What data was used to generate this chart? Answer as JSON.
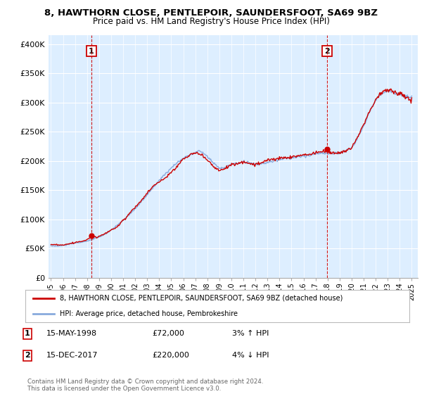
{
  "title_line1": "8, HAWTHORN CLOSE, PENTLEPOIR, SAUNDERSFOOT, SA69 9BZ",
  "title_line2": "Price paid vs. HM Land Registry's House Price Index (HPI)",
  "ylabel_ticks": [
    "£0",
    "£50K",
    "£100K",
    "£150K",
    "£200K",
    "£250K",
    "£300K",
    "£350K",
    "£400K"
  ],
  "ytick_values": [
    0,
    50000,
    100000,
    150000,
    200000,
    250000,
    300000,
    350000,
    400000
  ],
  "ylim": [
    0,
    415000
  ],
  "xlim_start": 1994.8,
  "xlim_end": 2025.5,
  "xtick_years": [
    1995,
    1996,
    1997,
    1998,
    1999,
    2000,
    2001,
    2002,
    2003,
    2004,
    2005,
    2006,
    2007,
    2008,
    2009,
    2010,
    2011,
    2012,
    2013,
    2014,
    2015,
    2016,
    2017,
    2018,
    2019,
    2020,
    2021,
    2022,
    2023,
    2024,
    2025
  ],
  "sale1_x": 1998.37,
  "sale1_y": 72000,
  "sale2_x": 2017.96,
  "sale2_y": 220000,
  "marker_color": "#cc0000",
  "line_color_red": "#cc0000",
  "line_color_blue": "#88aadd",
  "annotation_box_color": "#cc0000",
  "background_color": "#ffffff",
  "plot_bg_color": "#ddeeff",
  "grid_color": "#ffffff",
  "legend_label_red": "8, HAWTHORN CLOSE, PENTLEPOIR, SAUNDERSFOOT, SA69 9BZ (detached house)",
  "legend_label_blue": "HPI: Average price, detached house, Pembrokeshire",
  "note1_label": "1",
  "note1_date": "15-MAY-1998",
  "note1_price": "£72,000",
  "note1_hpi": "3% ↑ HPI",
  "note2_label": "2",
  "note2_date": "15-DEC-2017",
  "note2_price": "£220,000",
  "note2_hpi": "4% ↓ HPI",
  "footer": "Contains HM Land Registry data © Crown copyright and database right 2024.\nThis data is licensed under the Open Government Licence v3.0."
}
